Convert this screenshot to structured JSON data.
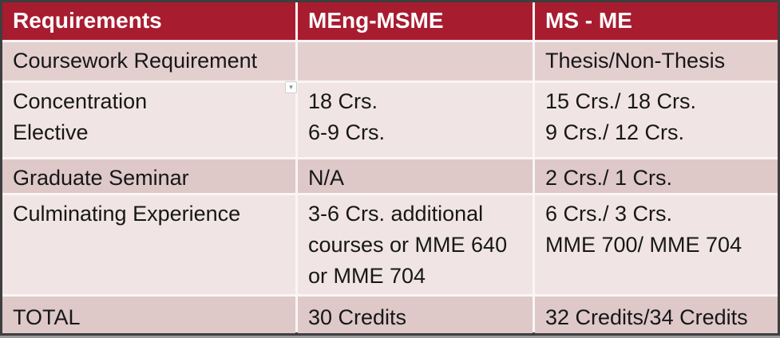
{
  "table": {
    "columns": [
      "Requirements",
      "MEng-MSME",
      "MS - ME"
    ],
    "rows": [
      {
        "requirement": "Coursework Requirement",
        "meng_msme": "",
        "ms_me": "Thesis/Non-Thesis"
      },
      {
        "requirement": "Concentration\nElective",
        "meng_msme": "18 Crs.\n6-9 Crs.",
        "ms_me": "15 Crs./ 18 Crs.\n9  Crs./ 12 Crs."
      },
      {
        "requirement": "Graduate Seminar",
        "meng_msme": "N/A",
        "ms_me": "2 Crs./ 1 Crs."
      },
      {
        "requirement": "Culminating Experience",
        "meng_msme": "3-6 Crs. additional courses or MME 640 or MME 704",
        "ms_me": "6 Crs./ 3 Crs.\nMME 700/ MME 704"
      },
      {
        "requirement": "TOTAL",
        "meng_msme": "30 Credits",
        "ms_me": "32 Credits/34 Credits"
      }
    ]
  },
  "icons": {
    "autofit_chevron_glyph": "▾"
  },
  "colors": {
    "header_bg": "#A81C30",
    "header_text": "#FFFFFF",
    "band_dark": "#DEC8C8",
    "band_row1": "#E4CFCF",
    "band_light": "#F0E4E4",
    "body_text": "#171717",
    "outer_border": "#3E3E3E",
    "bottom_shadow": "#9B9B9B",
    "grid_line": "#FBF5F5"
  }
}
